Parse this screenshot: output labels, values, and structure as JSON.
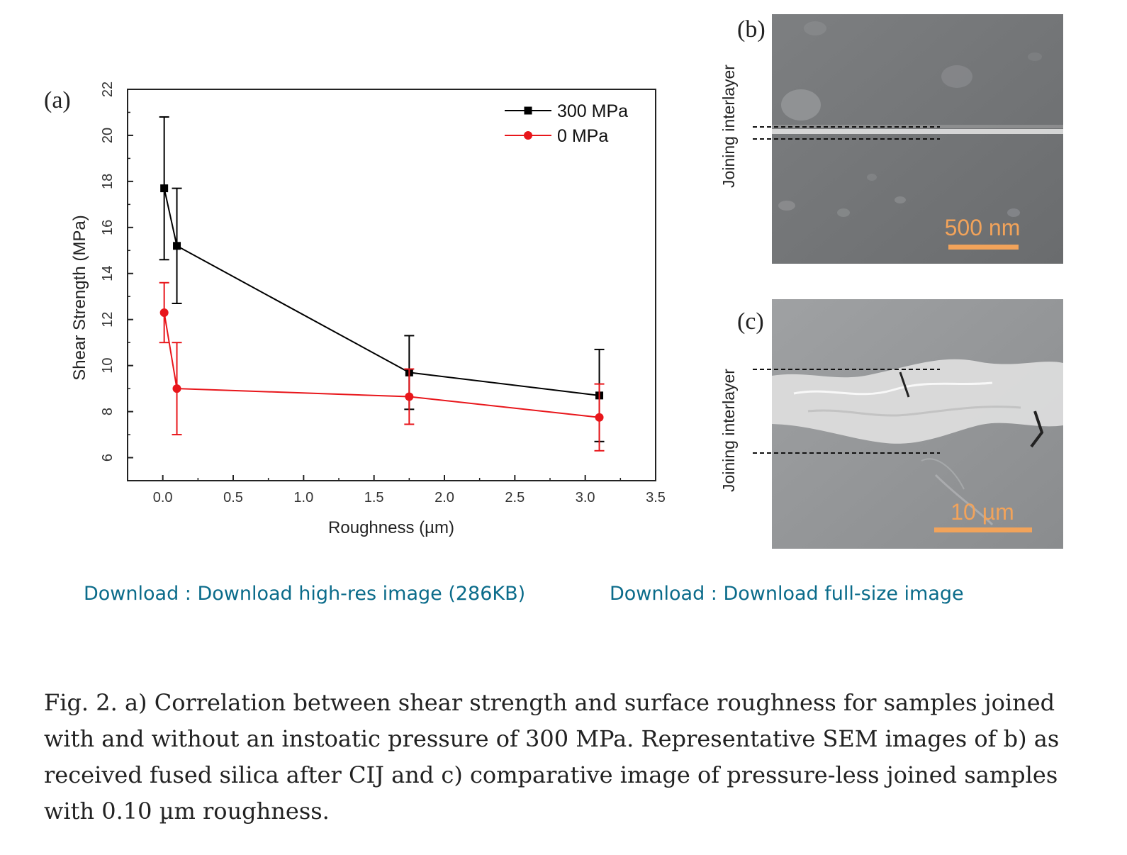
{
  "panels": {
    "a_label": "(a)",
    "b_label": "(b)",
    "c_label": "(c)"
  },
  "sem_b": {
    "side_label": "Joining interlayer",
    "scale_bar": "500 nm"
  },
  "sem_c": {
    "side_label": "Joining interlayer",
    "scale_bar": "10 µm"
  },
  "downloads": {
    "hires": "Download : Download high-res image (286KB)",
    "full": "Download : Download full-size image"
  },
  "caption": "Fig. 2. a) Correlation between shear strength and surface roughness for samples joined with and without an instoatic pressure of 300 MPa. Representative SEM images of b) as received fused silica after CIJ and c) comparative image of pressure-less joined samples with 0.10 µm roughness.",
  "chart_data": {
    "type": "line",
    "title": "",
    "xlabel": "Roughness (µm)",
    "ylabel": "Shear Strength (MPa)",
    "xlim": [
      -0.25,
      3.5
    ],
    "ylim": [
      5,
      22
    ],
    "xticks": [
      "0.0",
      "0.5",
      "1.0",
      "1.5",
      "2.0",
      "2.5",
      "3.0",
      "3.5"
    ],
    "yticks": [
      "6",
      "8",
      "10",
      "12",
      "14",
      "16",
      "18",
      "20",
      "22"
    ],
    "legend_position": "top-right",
    "grid": false,
    "series": [
      {
        "name": "300 MPa",
        "color": "#000000",
        "marker": "square",
        "x": [
          0.01,
          0.1,
          1.75,
          3.1
        ],
        "y": [
          17.7,
          15.2,
          9.7,
          8.7
        ],
        "err": [
          3.1,
          2.5,
          1.6,
          2.0
        ]
      },
      {
        "name": "0 MPa",
        "color": "#e8161b",
        "marker": "circle",
        "x": [
          0.01,
          0.1,
          1.75,
          3.1
        ],
        "y": [
          12.3,
          9.0,
          8.65,
          7.75
        ],
        "err": [
          1.3,
          2.0,
          1.2,
          1.45
        ]
      }
    ]
  }
}
